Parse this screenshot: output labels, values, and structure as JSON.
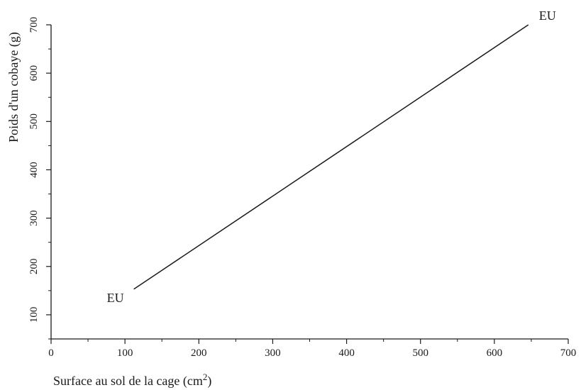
{
  "chart_data": {
    "type": "line",
    "title": "",
    "xlabel": "Surface au sol de la cage (cm",
    "xlabel_superscript": "2",
    "xlabel_suffix": ")",
    "ylabel": "Poids d'un cobaye (g)",
    "xlim": [
      0,
      700
    ],
    "ylim": [
      50,
      700
    ],
    "x_ticks": [
      0,
      100,
      200,
      300,
      400,
      500,
      600,
      700
    ],
    "y_ticks": [
      100,
      200,
      300,
      400,
      500,
      600,
      700
    ],
    "grid": false,
    "series": [
      {
        "x": [
          112,
          646
        ],
        "y": [
          153,
          700
        ]
      }
    ],
    "annotations": [
      {
        "text": "EU",
        "x": 112,
        "y": 153,
        "placement": "left-below"
      },
      {
        "text": "EU",
        "x": 646,
        "y": 700,
        "placement": "right-above"
      }
    ],
    "colors": {
      "line": "#1a1a1a",
      "axis": "#1a1a1a"
    }
  }
}
